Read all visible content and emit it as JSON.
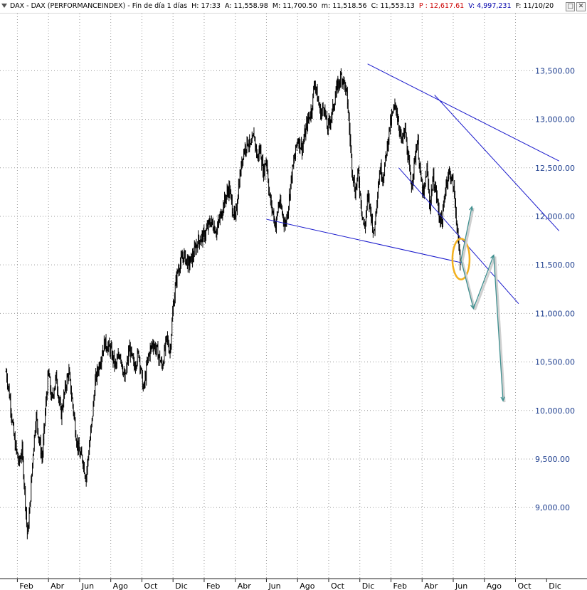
{
  "header": {
    "title": "DAX - DAX (PERFORMANCEINDEX) - Fin de día 1 días",
    "hora": "H: 17:33",
    "apertura": "A: 11,558.98",
    "maximo": "M: 11,700.50",
    "minimo": "m: 11,518.56",
    "cierre": "C: 11,553.13",
    "p": "P : 12,617.61",
    "volumen": "V: 4,997,231",
    "fecha": "F: 11/10/20",
    "btn_restore": "□",
    "btn_close": "✕"
  },
  "chart_data": {
    "type": "ohlc",
    "x_unit": "month index (0 = start of Feb, year 1)",
    "y_axis": {
      "ylim": [
        8400,
        13950
      ],
      "ticks": [
        {
          "value": 9000,
          "label": "9,000.00"
        },
        {
          "value": 9500,
          "label": "9,500.00"
        },
        {
          "value": 10000,
          "label": "10,000.00"
        },
        {
          "value": 10500,
          "label": "10,500.00"
        },
        {
          "value": 11000,
          "label": "11,000.00"
        },
        {
          "value": 11500,
          "label": "11,500.00"
        },
        {
          "value": 12000,
          "label": "12,000.00"
        },
        {
          "value": 12500,
          "label": "12,500.00"
        },
        {
          "value": 13000,
          "label": "13,000.00"
        },
        {
          "value": 13500,
          "label": "13,500.00"
        }
      ]
    },
    "x_axis": {
      "xlim": [
        -0.75,
        32.8
      ],
      "ticks": [
        {
          "value": 0,
          "label": "Feb"
        },
        {
          "value": 2,
          "label": "Abr"
        },
        {
          "value": 4,
          "label": "Jun"
        },
        {
          "value": 6,
          "label": "Ago"
        },
        {
          "value": 8,
          "label": "Oct"
        },
        {
          "value": 10,
          "label": "Dic"
        },
        {
          "value": 12,
          "label": "Feb"
        },
        {
          "value": 14,
          "label": "Abr"
        },
        {
          "value": 16,
          "label": "Jun"
        },
        {
          "value": 18,
          "label": "Ago"
        },
        {
          "value": 20,
          "label": "Oct"
        },
        {
          "value": 22,
          "label": "Dic"
        },
        {
          "value": 24,
          "label": "Feb"
        },
        {
          "value": 26,
          "label": "Abr"
        },
        {
          "value": 28,
          "label": "Jun"
        },
        {
          "value": 30,
          "label": "Ago"
        },
        {
          "value": 32,
          "label": "Oct"
        },
        {
          "value": 34,
          "label": "Dic"
        }
      ]
    },
    "price_path": [
      [
        -0.72,
        10400
      ],
      [
        -0.5,
        10150
      ],
      [
        -0.2,
        9700
      ],
      [
        0.1,
        9450
      ],
      [
        0.3,
        9600
      ],
      [
        0.5,
        9100
      ],
      [
        0.65,
        8700
      ],
      [
        0.8,
        9000
      ],
      [
        1.0,
        9550
      ],
      [
        1.2,
        9950
      ],
      [
        1.4,
        9700
      ],
      [
        1.6,
        9500
      ],
      [
        1.8,
        10000
      ],
      [
        2.0,
        10400
      ],
      [
        2.2,
        10100
      ],
      [
        2.5,
        10350
      ],
      [
        2.8,
        9950
      ],
      [
        3.1,
        10250
      ],
      [
        3.3,
        10400
      ],
      [
        3.6,
        10000
      ],
      [
        3.8,
        9700
      ],
      [
        4.0,
        9550
      ],
      [
        4.2,
        9500
      ],
      [
        4.4,
        9300
      ],
      [
        4.6,
        9600
      ],
      [
        4.8,
        9900
      ],
      [
        5.0,
        10300
      ],
      [
        5.3,
        10500
      ],
      [
        5.6,
        10700
      ],
      [
        6.0,
        10620
      ],
      [
        6.3,
        10450
      ],
      [
        6.6,
        10600
      ],
      [
        6.9,
        10300
      ],
      [
        7.2,
        10650
      ],
      [
        7.5,
        10450
      ],
      [
        7.8,
        10600
      ],
      [
        8.1,
        10200
      ],
      [
        8.4,
        10550
      ],
      [
        8.7,
        10700
      ],
      [
        9.0,
        10600
      ],
      [
        9.3,
        10450
      ],
      [
        9.6,
        10750
      ],
      [
        9.8,
        10600
      ],
      [
        10.0,
        11050
      ],
      [
        10.2,
        11350
      ],
      [
        10.4,
        11500
      ],
      [
        10.7,
        11600
      ],
      [
        11.0,
        11500
      ],
      [
        11.3,
        11600
      ],
      [
        11.6,
        11750
      ],
      [
        12.0,
        11800
      ],
      [
        12.4,
        11950
      ],
      [
        12.8,
        11850
      ],
      [
        13.2,
        12100
      ],
      [
        13.6,
        12300
      ],
      [
        13.8,
        12100
      ],
      [
        14.0,
        11950
      ],
      [
        14.2,
        12300
      ],
      [
        14.5,
        12650
      ],
      [
        14.8,
        12780
      ],
      [
        15.0,
        12700
      ],
      [
        15.2,
        12850
      ],
      [
        15.4,
        12600
      ],
      [
        15.6,
        12700
      ],
      [
        15.8,
        12450
      ],
      [
        16.0,
        12600
      ],
      [
        16.2,
        12200
      ],
      [
        16.4,
        12050
      ],
      [
        16.6,
        11900
      ],
      [
        16.8,
        12150
      ],
      [
        17.0,
        12050
      ],
      [
        17.2,
        11900
      ],
      [
        17.4,
        12100
      ],
      [
        17.6,
        12400
      ],
      [
        17.8,
        12600
      ],
      [
        18.0,
        12800
      ],
      [
        18.3,
        12700
      ],
      [
        18.6,
        12950
      ],
      [
        18.9,
        13100
      ],
      [
        19.1,
        13400
      ],
      [
        19.3,
        13200
      ],
      [
        19.5,
        13050
      ],
      [
        19.7,
        13150
      ],
      [
        19.9,
        12900
      ],
      [
        20.2,
        13050
      ],
      [
        20.5,
        13300
      ],
      [
        20.8,
        13450
      ],
      [
        21.0,
        13380
      ],
      [
        21.2,
        13200
      ],
      [
        21.5,
        12500
      ],
      [
        21.7,
        12250
      ],
      [
        21.9,
        12450
      ],
      [
        22.1,
        12100
      ],
      [
        22.3,
        11850
      ],
      [
        22.5,
        12200
      ],
      [
        22.7,
        12050
      ],
      [
        22.9,
        11800
      ],
      [
        23.1,
        12200
      ],
      [
        23.3,
        12500
      ],
      [
        23.5,
        12400
      ],
      [
        23.7,
        12650
      ],
      [
        23.9,
        12900
      ],
      [
        24.1,
        13050
      ],
      [
        24.3,
        13150
      ],
      [
        24.5,
        12950
      ],
      [
        24.7,
        12750
      ],
      [
        24.9,
        12900
      ],
      [
        25.1,
        12600
      ],
      [
        25.3,
        12300
      ],
      [
        25.5,
        12550
      ],
      [
        25.7,
        12800
      ],
      [
        25.9,
        12400
      ],
      [
        26.1,
        12200
      ],
      [
        26.3,
        12500
      ],
      [
        26.5,
        12100
      ],
      [
        26.7,
        12400
      ],
      [
        26.9,
        12250
      ],
      [
        27.1,
        12000
      ],
      [
        27.3,
        11950
      ],
      [
        27.5,
        12300
      ],
      [
        27.7,
        12450
      ],
      [
        27.9,
        12400
      ],
      [
        28.1,
        12200
      ],
      [
        28.3,
        11750
      ],
      [
        28.45,
        11550
      ]
    ],
    "trendlines": [
      {
        "from": [
          22.5,
          13570
        ],
        "to": [
          34.8,
          12570
        ]
      },
      {
        "from": [
          26.8,
          13250
        ],
        "to": [
          34.8,
          11850
        ]
      },
      {
        "from": [
          24.5,
          12500
        ],
        "to": [
          32.2,
          11100
        ]
      },
      {
        "from": [
          16.0,
          11970
        ],
        "to": [
          28.6,
          11520
        ]
      }
    ],
    "projection": [
      [
        28.5,
        11550
      ],
      [
        29.2,
        12100
      ]
    ],
    "projection_down": [
      [
        28.5,
        11550
      ],
      [
        29.3,
        11050
      ],
      [
        30.6,
        11600
      ],
      [
        31.2,
        10100
      ]
    ],
    "highlight": {
      "center": [
        28.5,
        11560
      ],
      "radius_x": 0.55,
      "radius_y": 210
    }
  }
}
